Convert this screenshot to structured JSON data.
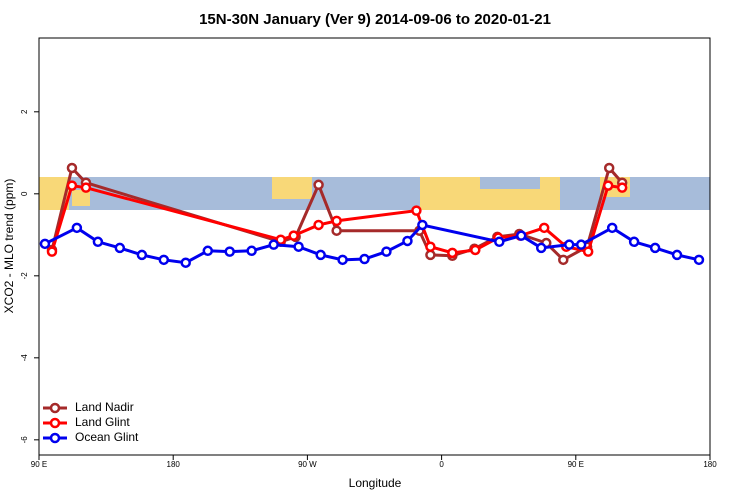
{
  "chart_data": {
    "type": "line",
    "title": "15N-30N January (Ver 9)   2014-09-06 to 2020-01-21",
    "x_label": "Longitude",
    "y_label": "XCO2 - MLO trend (ppm)",
    "xlim": [
      90,
      540
    ],
    "ylim": [
      -6.37,
      3.8
    ],
    "xticks": [
      {
        "value": 90,
        "label": "90 E"
      },
      {
        "value": 180,
        "label": "180"
      },
      {
        "value": 270,
        "label": "90 W"
      },
      {
        "value": 360,
        "label": "0"
      },
      {
        "value": 450,
        "label": "90 E"
      },
      {
        "value": 540,
        "label": "180"
      }
    ],
    "yticks": [
      -6,
      -4,
      -2,
      0,
      2
    ],
    "legend": "bottom-left",
    "series": [
      {
        "name": "Land Nadir",
        "color": "#a52a2a",
        "x": [
          98.7,
          112.1,
          121.5,
          252.1,
          262.1,
          277.5,
          289.6,
          345.1,
          352.5,
          367.2,
          382.0,
          397.4,
          412.1,
          430.2,
          441.6,
          457.6,
          472.4,
          481.1
        ],
        "values": [
          -1.37,
          0.63,
          0.27,
          -1.17,
          -1.05,
          0.22,
          -0.9,
          -0.9,
          -1.49,
          -1.51,
          -1.34,
          -1.05,
          -0.98,
          -1.2,
          -1.61,
          -1.29,
          0.63,
          0.27
        ]
      },
      {
        "name": "Land Glint",
        "color": "#ff0000",
        "x": [
          98.7,
          112.1,
          121.5,
          252.1,
          260.8,
          277.5,
          289.6,
          343.1,
          352.5,
          367.2,
          382.6,
          398.0,
          412.8,
          428.8,
          443.6,
          458.3,
          471.7,
          481.1
        ],
        "values": [
          -1.41,
          0.2,
          0.15,
          -1.12,
          -1.02,
          -0.76,
          -0.66,
          -0.41,
          -1.29,
          -1.44,
          -1.37,
          -1.07,
          -1.02,
          -0.83,
          -1.29,
          -1.41,
          0.2,
          0.15
        ]
      },
      {
        "name": "Ocean Glint",
        "color": "#0000ee",
        "x": [
          94.0,
          115.4,
          129.5,
          144.2,
          159.0,
          173.7,
          188.4,
          203.2,
          217.9,
          232.6,
          247.4,
          264.1,
          278.9,
          293.6,
          308.3,
          323.0,
          337.1,
          347.1,
          398.7,
          413.4,
          426.8,
          445.6,
          453.6,
          474.4,
          489.1,
          503.2,
          517.9,
          532.6
        ],
        "values": [
          -1.22,
          -0.83,
          -1.17,
          -1.32,
          -1.49,
          -1.61,
          -1.68,
          -1.39,
          -1.41,
          -1.39,
          -1.24,
          -1.29,
          -1.49,
          -1.61,
          -1.59,
          -1.41,
          -1.15,
          -0.76,
          -1.17,
          -1.02,
          -1.32,
          -1.24,
          -1.24,
          -0.83,
          -1.17,
          -1.32,
          -1.49,
          -1.61
        ]
      }
    ]
  }
}
